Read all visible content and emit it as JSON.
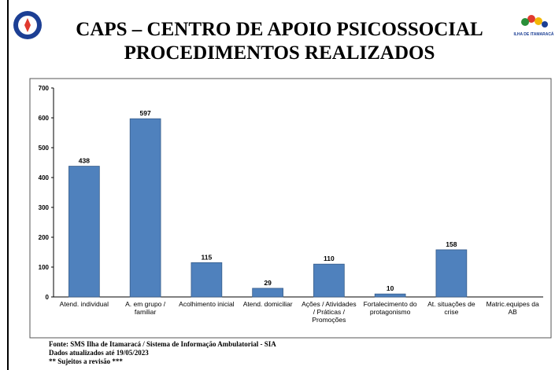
{
  "title_lines": [
    "CAPS –  CENTRO DE APOIO PSICOSSOCIAL",
    "PROCEDIMENTOS REALIZADOS"
  ],
  "logo_text": "ILHA DE ITAMARACÁ",
  "chart_data": {
    "type": "bar",
    "categories": [
      "Atend. individual",
      "A. em grupo / familiar",
      "Acolhimento inicial",
      "Atend. domiciliar",
      "Ações / Atividades / Práticas / Promoções",
      "Fortalecimento do protagonismo",
      "At. situações de crise",
      "Matric.equipes da AB"
    ],
    "values": [
      438,
      597,
      115,
      29,
      110,
      10,
      158,
      null
    ],
    "color": "#4f81bd",
    "ylim": [
      0,
      700
    ],
    "yticks": [
      0,
      100,
      200,
      300,
      400,
      500,
      600,
      700
    ],
    "grid": false
  },
  "footer": [
    "Fonte: SMS Ilha de Itamaracá / Sistema de Informação Ambulatorial - SIA",
    "Dados atualizados até 19/05/2023",
    "** Sujeitos a revisão ***"
  ]
}
